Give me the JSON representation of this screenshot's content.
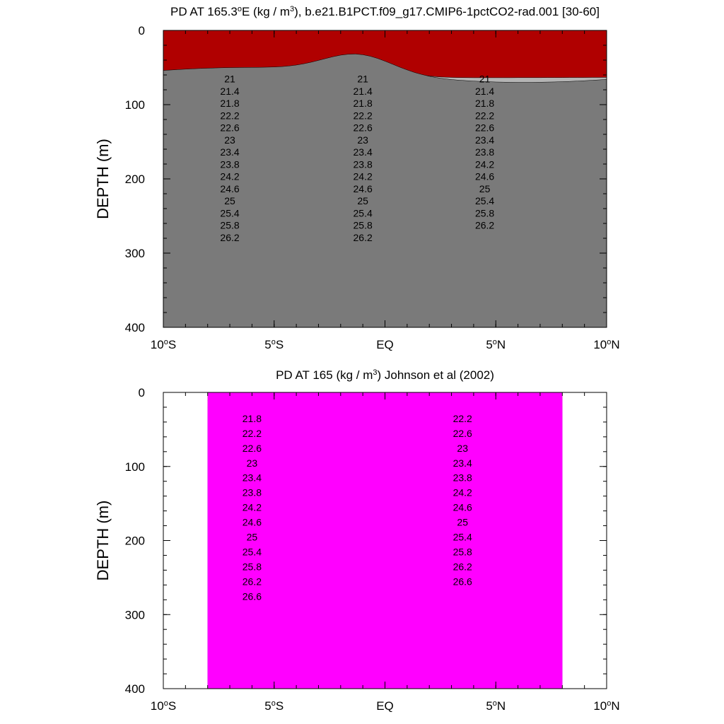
{
  "chart_data": [
    {
      "type": "contour",
      "title": "PD AT 165.3°E (kg / m³), b.e21.B1PCT.f09_g17.CMIP6-1pctCO2-rad.001 [30-60]",
      "title_parts": {
        "pre": "PD AT 165.3",
        "sup": "o",
        "mid": "E (kg / m",
        "sup2": "3",
        "post": "), b.e21.B1PCT.f09_g17.CMIP6-1pctCO2-rad.001 [30-60]"
      },
      "ylabel": "DEPTH (m)",
      "xlim": [
        -10,
        10
      ],
      "ylim": [
        0,
        400
      ],
      "y_inverted": true,
      "yticks": [
        "0",
        "100",
        "200",
        "300",
        "400"
      ],
      "xticks": [
        {
          "v": -10,
          "label": "10",
          "sup": "o",
          "suffix": "S"
        },
        {
          "v": -5,
          "label": "5",
          "sup": "o",
          "suffix": "S"
        },
        {
          "v": 0,
          "label": "EQ",
          "sup": "",
          "suffix": ""
        },
        {
          "v": 5,
          "label": "5",
          "sup": "o",
          "suffix": "N"
        },
        {
          "v": 10,
          "label": "10",
          "sup": "o",
          "suffix": "N"
        }
      ],
      "data_xlim": [
        -10,
        10
      ],
      "contour_labels": [
        "21",
        "21",
        "21",
        "21.4",
        "21.4",
        "21.4",
        "21.8",
        "21.8",
        "21.8",
        "22.2",
        "22.2",
        "22.2",
        "22.6",
        "22.6",
        "22.6",
        "23",
        "23",
        "23.4",
        "23.4",
        "23.4",
        "23.8",
        "23.8",
        "23.8",
        "24.2",
        "24.2",
        "24.2",
        "24.6",
        "24.6",
        "24.6",
        "25",
        "25",
        "25",
        "25.4",
        "25.4",
        "25.4",
        "25.8",
        "25.8",
        "25.8",
        "26.2",
        "26.2",
        "26.2"
      ]
    },
    {
      "type": "contour",
      "title": "PD AT 165 (kg / m³) Johnson et al (2002)",
      "title_parts": {
        "pre": "PD AT 165 (kg / m",
        "sup": "3",
        "post": ") Johnson et al (2002)"
      },
      "ylabel": "DEPTH (m)",
      "xlim": [
        -10,
        10
      ],
      "ylim": [
        0,
        400
      ],
      "y_inverted": true,
      "yticks": [
        "0",
        "100",
        "200",
        "300",
        "400"
      ],
      "xticks": [
        {
          "v": -10,
          "label": "10",
          "sup": "o",
          "suffix": "S"
        },
        {
          "v": -5,
          "label": "5",
          "sup": "o",
          "suffix": "S"
        },
        {
          "v": 0,
          "label": "EQ",
          "sup": "",
          "suffix": ""
        },
        {
          "v": 5,
          "label": "5",
          "sup": "o",
          "suffix": "N"
        },
        {
          "v": 10,
          "label": "10",
          "sup": "o",
          "suffix": "N"
        }
      ],
      "data_xlim": [
        -8,
        8
      ],
      "contour_labels": [
        "21.8",
        "22.2",
        "22.2",
        "22.6",
        "22.6",
        "23",
        "23",
        "23.4",
        "23.4",
        "23.8",
        "23.8",
        "24.2",
        "24.2",
        "24.6",
        "24.6",
        "25",
        "25",
        "25.4",
        "25.4",
        "25.8",
        "25.8",
        "26.2",
        "26.2",
        "26.6",
        "26.6"
      ]
    }
  ]
}
